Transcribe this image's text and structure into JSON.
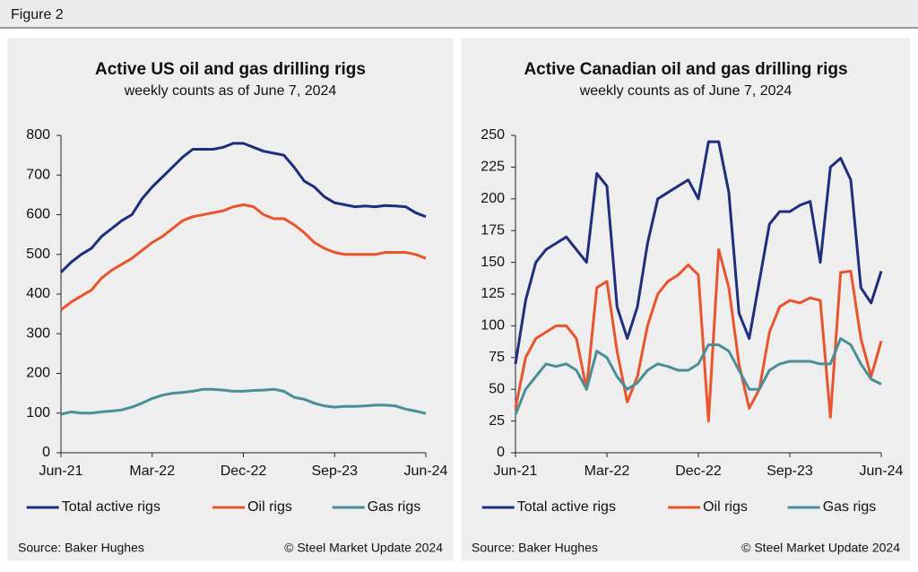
{
  "figure_label": "Figure 2",
  "chart_data": [
    {
      "type": "line",
      "title": "Active US oil and gas drilling rigs",
      "subtitle": "weekly counts as of June 7, 2024",
      "categories": [
        "Jun-21",
        null,
        null,
        null,
        null,
        null,
        null,
        null,
        null,
        "Mar-22",
        null,
        null,
        null,
        null,
        null,
        null,
        null,
        null,
        "Dec-22",
        null,
        null,
        null,
        null,
        null,
        null,
        null,
        null,
        "Sep-23",
        null,
        null,
        null,
        null,
        null,
        null,
        null,
        null,
        "Jun-24"
      ],
      "ylim": [
        0,
        800
      ],
      "yticks": [
        0,
        100,
        200,
        300,
        400,
        500,
        600,
        700,
        800
      ],
      "grid": false,
      "legend": "bottom",
      "series": [
        {
          "name": "Total active rigs",
          "color": "#1f2e7a",
          "values": [
            455,
            480,
            500,
            515,
            545,
            565,
            585,
            600,
            640,
            670,
            695,
            720,
            745,
            765,
            765,
            765,
            770,
            780,
            780,
            770,
            760,
            755,
            750,
            720,
            685,
            670,
            645,
            630,
            625,
            620,
            622,
            620,
            623,
            622,
            620,
            605,
            595
          ]
        },
        {
          "name": "Oil rigs",
          "color": "#e8552d",
          "values": [
            360,
            380,
            395,
            410,
            440,
            460,
            475,
            490,
            510,
            530,
            545,
            565,
            585,
            595,
            600,
            605,
            610,
            620,
            625,
            620,
            600,
            590,
            590,
            575,
            555,
            530,
            515,
            505,
            500,
            500,
            500,
            500,
            505,
            505,
            505,
            500,
            490
          ]
        },
        {
          "name": "Gas rigs",
          "color": "#4a8f96",
          "values": [
            97,
            103,
            100,
            100,
            103,
            105,
            108,
            115,
            125,
            137,
            145,
            150,
            152,
            155,
            160,
            160,
            158,
            155,
            155,
            157,
            158,
            160,
            155,
            140,
            135,
            125,
            118,
            115,
            117,
            117,
            118,
            120,
            120,
            118,
            110,
            105,
            99
          ]
        }
      ],
      "source": "Source: Baker Hughes",
      "credit": "© Steel Market Update 2024"
    },
    {
      "type": "line",
      "title": "Active Canadian oil and gas drilling rigs",
      "subtitle": "weekly counts as of June 7, 2024",
      "categories": [
        "Jun-21",
        null,
        null,
        null,
        null,
        null,
        null,
        null,
        null,
        "Mar-22",
        null,
        null,
        null,
        null,
        null,
        null,
        null,
        null,
        "Dec-22",
        null,
        null,
        null,
        null,
        null,
        null,
        null,
        null,
        "Sep-23",
        null,
        null,
        null,
        null,
        null,
        null,
        null,
        null,
        "Jun-24"
      ],
      "ylim": [
        0,
        250
      ],
      "yticks": [
        0,
        25,
        50,
        75,
        100,
        125,
        150,
        175,
        200,
        225,
        250
      ],
      "grid": false,
      "legend": "bottom",
      "series": [
        {
          "name": "Total active rigs",
          "color": "#1f2e7a",
          "values": [
            70,
            120,
            150,
            160,
            165,
            170,
            160,
            150,
            220,
            210,
            115,
            90,
            115,
            165,
            200,
            205,
            210,
            215,
            200,
            245,
            245,
            205,
            110,
            90,
            135,
            180,
            190,
            190,
            195,
            198,
            150,
            225,
            232,
            215,
            130,
            118,
            143
          ]
        },
        {
          "name": "Oil rigs",
          "color": "#e8552d",
          "values": [
            35,
            75,
            90,
            95,
            100,
            100,
            90,
            50,
            130,
            135,
            80,
            40,
            60,
            100,
            125,
            135,
            140,
            148,
            140,
            25,
            160,
            130,
            70,
            35,
            50,
            95,
            115,
            120,
            118,
            122,
            120,
            28,
            142,
            143,
            90,
            60,
            88
          ]
        },
        {
          "name": "Gas rigs",
          "color": "#4a8f96",
          "values": [
            30,
            50,
            60,
            70,
            68,
            70,
            65,
            50,
            80,
            75,
            60,
            50,
            55,
            65,
            70,
            68,
            65,
            65,
            70,
            85,
            85,
            80,
            65,
            50,
            50,
            65,
            70,
            72,
            72,
            72,
            70,
            70,
            90,
            85,
            70,
            58,
            54
          ]
        }
      ],
      "source": "Source: Baker Hughes",
      "credit": "© Steel Market Update 2024"
    }
  ]
}
